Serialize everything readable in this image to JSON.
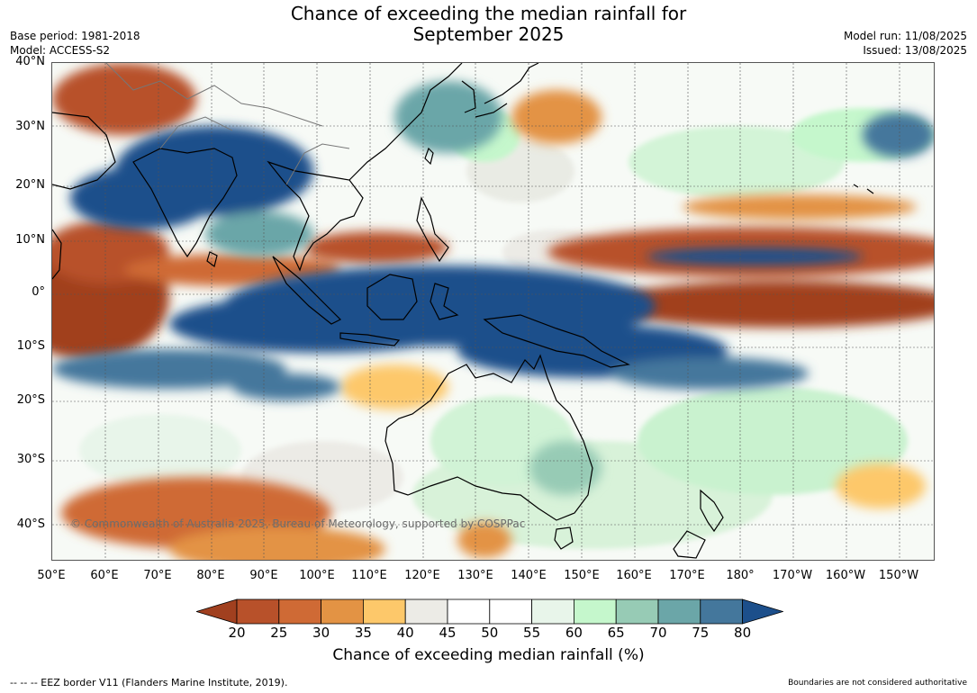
{
  "header": {
    "title_line1": "Chance of exceeding the median rainfall for",
    "title_line2": "September 2025",
    "base_period": "Base period: 1981-2018",
    "model": "Model: ACCESS-S2",
    "model_run": "Model run: 11/08/2025",
    "issued": "Issued: 13/08/2025"
  },
  "map": {
    "lat_labels": [
      "40°N",
      "30°N",
      "20°N",
      "10°N",
      "0°",
      "10°S",
      "20°S",
      "30°S",
      "40°S"
    ],
    "lon_labels": [
      "50°E",
      "60°E",
      "70°E",
      "80°E",
      "90°E",
      "100°E",
      "110°E",
      "120°E",
      "130°E",
      "140°E",
      "150°E",
      "160°E",
      "170°E",
      "180°",
      "170°W",
      "160°W",
      "150°W"
    ],
    "copyright": "© Commonwealth of Australia 2025, Bureau of Meteorology, supported by COSPPac"
  },
  "colorbar": {
    "ticks": [
      "20",
      "25",
      "30",
      "35",
      "40",
      "45",
      "50",
      "55",
      "60",
      "65",
      "70",
      "75",
      "80"
    ],
    "colors": [
      "#a1401f",
      "#b8512a",
      "#cf6a35",
      "#e39344",
      "#fdc86a",
      "#ecebe6",
      "#ffffff",
      "#ffffff",
      "#e8f5ea",
      "#c5f7cc",
      "#97cbb5",
      "#6ba6a8",
      "#44779c",
      "#1c4f8b"
    ],
    "title": "Chance of exceeding median rainfall (%)"
  },
  "footer": {
    "left": "--  --  -- EEZ border V11 (Flanders Marine Institute, 2019).",
    "right": "Boundaries are not considered authoritative"
  }
}
